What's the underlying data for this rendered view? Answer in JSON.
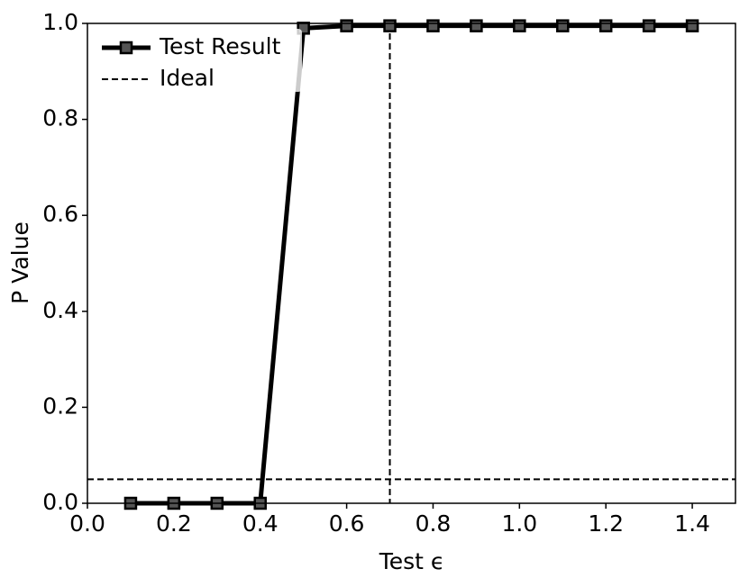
{
  "chart_data": {
    "type": "line",
    "xlabel": "Test ϵ",
    "ylabel": "P Value",
    "x": [
      0.1,
      0.2,
      0.3,
      0.4,
      0.5,
      0.6,
      0.7,
      0.8,
      0.9,
      1.0,
      1.1,
      1.2,
      1.3,
      1.4
    ],
    "series": [
      {
        "name": "Test Result",
        "color": "#000000",
        "values": [
          0,
          0,
          0,
          0,
          0.99,
          0.995,
          0.995,
          0.995,
          0.995,
          0.995,
          0.995,
          0.995,
          0.995,
          0.995
        ]
      }
    ],
    "reference": {
      "name": "Ideal",
      "color": "#000000",
      "x": 0.7,
      "y": 0.05
    },
    "xlim": [
      0,
      1.5
    ],
    "ylim": [
      0,
      1.0
    ],
    "xticks": [
      {
        "value": 0,
        "label": "0.0"
      },
      {
        "value": 0.2,
        "label": "0.2"
      },
      {
        "value": 0.4,
        "label": "0.4"
      },
      {
        "value": 0.6,
        "label": "0.6"
      },
      {
        "value": 0.8,
        "label": "0.8"
      },
      {
        "value": 1.0,
        "label": "1.0"
      },
      {
        "value": 1.2,
        "label": "1.2"
      },
      {
        "value": 1.4,
        "label": "1.4"
      }
    ],
    "yticks": [
      {
        "value": 0,
        "label": "0.0"
      },
      {
        "value": 0.2,
        "label": "0.2"
      },
      {
        "value": 0.4,
        "label": "0.4"
      },
      {
        "value": 0.6,
        "label": "0.6"
      },
      {
        "value": 0.8,
        "label": "0.8"
      },
      {
        "value": 1.0,
        "label": "1.0"
      }
    ],
    "legend": "upper left"
  }
}
